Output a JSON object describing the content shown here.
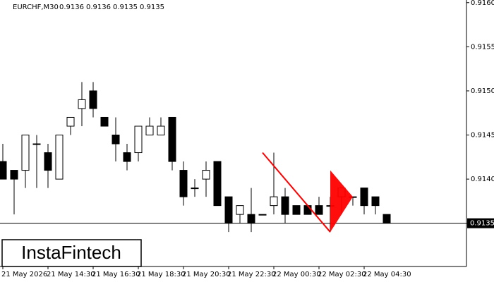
{
  "chart_data": {
    "type": "candlestick",
    "symbol": "EURCHF,M30",
    "header_ohlc": [
      0.9136,
      0.9136,
      0.9135,
      0.9135
    ],
    "categories": [
      "21 May 2026",
      null,
      null,
      null,
      "21 May 14:30",
      null,
      null,
      null,
      "21 May 16:30",
      null,
      null,
      null,
      "21 May 18:30",
      null,
      null,
      null,
      "21 May 20:30",
      null,
      null,
      null,
      "21 May 22:30",
      null,
      null,
      null,
      "22 May 00:30",
      null,
      null,
      null,
      "22 May 02:30",
      null,
      null,
      null,
      "22 May 04:30",
      null,
      null
    ],
    "open": [
      0.9142,
      0.9141,
      0.9141,
      0.9144,
      0.9143,
      0.914,
      0.9146,
      0.9148,
      0.915,
      0.9147,
      0.9145,
      0.9143,
      0.9143,
      0.9145,
      0.9145,
      0.9147,
      0.9141,
      0.9139,
      0.914,
      0.9142,
      0.9138,
      0.9136,
      0.9136,
      0.9136,
      0.9137,
      0.9138,
      0.9137,
      0.9137,
      0.9137,
      0.9137,
      0.9138,
      0.9138,
      0.9139,
      0.9138,
      0.9136
    ],
    "high": [
      0.9144,
      0.9141,
      0.9145,
      0.9145,
      0.9144,
      0.9145,
      0.9147,
      0.9151,
      0.9151,
      0.9147,
      0.9147,
      0.9144,
      0.9146,
      0.9147,
      0.9147,
      0.9147,
      0.9142,
      0.914,
      0.9142,
      0.9142,
      0.9138,
      0.9137,
      0.9139,
      0.9136,
      0.9143,
      0.9139,
      0.9137,
      0.9137,
      0.9138,
      0.9138,
      0.9139,
      0.9138,
      0.9139,
      0.9138,
      0.9136
    ],
    "low": [
      0.914,
      0.9136,
      0.9139,
      0.9139,
      0.9139,
      0.914,
      0.9145,
      0.9146,
      0.9147,
      0.9146,
      0.9142,
      0.9141,
      0.9142,
      0.9145,
      0.9145,
      0.9141,
      0.9137,
      0.9138,
      0.9138,
      0.9137,
      0.9134,
      0.9135,
      0.9134,
      0.9136,
      0.9136,
      0.9135,
      0.9136,
      0.9136,
      0.9136,
      0.9134,
      0.9136,
      0.9137,
      0.9136,
      0.9136,
      0.9135
    ],
    "close": [
      0.914,
      0.914,
      0.9145,
      0.9144,
      0.9141,
      0.9145,
      0.9147,
      0.9149,
      0.9148,
      0.9146,
      0.9144,
      0.9142,
      0.9146,
      0.9146,
      0.9146,
      0.9142,
      0.9138,
      0.9139,
      0.9141,
      0.9137,
      0.9135,
      0.9137,
      0.9135,
      0.9136,
      0.9138,
      0.9136,
      0.9136,
      0.9136,
      0.9136,
      0.9137,
      0.9139,
      0.9138,
      0.9137,
      0.9137,
      0.9135
    ],
    "up_color": "#ffffff",
    "down_color": "#000000",
    "ylim": [
      0.91301,
      0.91603
    ],
    "yticks": [
      0.9135,
      {
        "value": 0.914,
        "label": "0.9140"
      },
      0.9145,
      {
        "value": 0.915,
        "label": "0.9150"
      },
      0.9155,
      {
        "value": 0.916,
        "label": "0.9160"
      }
    ],
    "last_price": 0.9135,
    "pattern": {
      "color": "#ff0000",
      "line": {
        "x": [
          23,
          29
        ],
        "y": [
          0.9143,
          0.9134
        ]
      },
      "pennant": {
        "x": [
          29,
          29,
          31
        ],
        "y": [
          0.9141,
          0.9134,
          0.9138
        ]
      }
    },
    "logo": "InstaFintech"
  }
}
